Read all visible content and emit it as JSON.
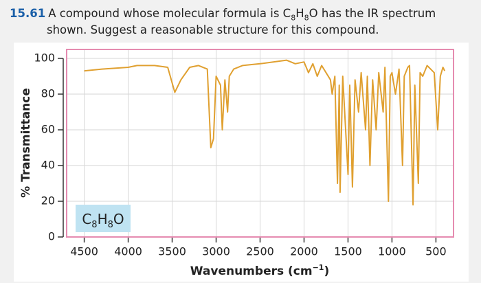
{
  "question": {
    "number": "15.61",
    "parts": [
      "A compound whose molecular formula is C",
      "8",
      "H",
      "8",
      "O has the IR spectrum",
      "shown. Suggest a reasonable structure for this compound."
    ]
  },
  "chart_data": {
    "type": "line",
    "ylabel": "% Transmittance",
    "xlabel_parts": [
      "Wavenumbers (cm",
      "−1",
      ")"
    ],
    "annotation_parts": [
      "C",
      "8",
      "H",
      "8",
      "O"
    ],
    "x": [
      4500,
      4300,
      4000,
      3900,
      3700,
      3550,
      3470,
      3400,
      3300,
      3200,
      3100,
      3060,
      3030,
      3000,
      2950,
      2930,
      2900,
      2870,
      2850,
      2800,
      2700,
      2500,
      2200,
      2100,
      2000,
      1950,
      1900,
      1850,
      1800,
      1700,
      1680,
      1650,
      1620,
      1600,
      1590,
      1560,
      1500,
      1480,
      1450,
      1420,
      1380,
      1350,
      1300,
      1280,
      1250,
      1220,
      1180,
      1150,
      1100,
      1080,
      1040,
      1020,
      1000,
      960,
      920,
      880,
      860,
      820,
      800,
      760,
      740,
      700,
      680,
      650,
      600,
      560,
      520,
      480,
      450,
      420,
      400
    ],
    "values": [
      93,
      94,
      95,
      96,
      96,
      95,
      81,
      88,
      95,
      96,
      94,
      50,
      55,
      90,
      85,
      60,
      88,
      70,
      90,
      94,
      96,
      97,
      99,
      97,
      98,
      92,
      97,
      90,
      96,
      88,
      80,
      90,
      30,
      85,
      25,
      90,
      35,
      85,
      28,
      88,
      70,
      92,
      60,
      90,
      40,
      88,
      60,
      92,
      70,
      95,
      20,
      90,
      92,
      80,
      94,
      40,
      90,
      95,
      96,
      18,
      85,
      30,
      92,
      90,
      96,
      94,
      92,
      60,
      90,
      95,
      93
    ],
    "color": "#e0a030",
    "xlim": [
      4700,
      300
    ],
    "xticks": [
      4500,
      4000,
      3500,
      3000,
      2500,
      2000,
      1500,
      1000,
      500
    ],
    "ylim": [
      0,
      105
    ],
    "yticks": [
      0,
      20,
      40,
      60,
      80,
      100
    ],
    "grid": true
  }
}
